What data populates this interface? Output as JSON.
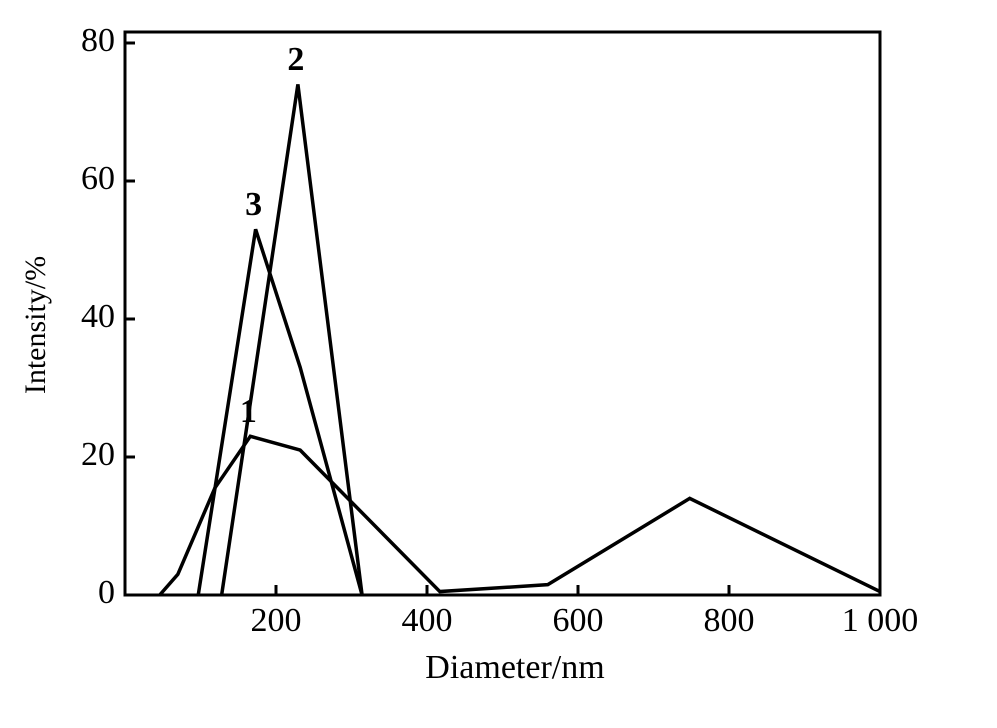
{
  "chart_data": {
    "type": "line",
    "x_label": "Diameter/nm",
    "y_label": "Intensity/%",
    "xlim": [
      0,
      1000
    ],
    "ylim": [
      0,
      80
    ],
    "xticks": [
      200,
      400,
      600,
      800,
      {
        "value": 1000,
        "label": "1 000"
      }
    ],
    "yticks": [
      0,
      20,
      40,
      60,
      80
    ],
    "series": [
      {
        "name": "1",
        "color": "#000000",
        "x": [
          46,
          70,
          119,
          166,
          232,
          417,
          560,
          748,
          1000
        ],
        "values": [
          0,
          3,
          15.5,
          23,
          21,
          0.5,
          1.5,
          14,
          0.5
        ]
      },
      {
        "name": "2",
        "color": "#000000",
        "x": [
          128,
          229,
          314
        ],
        "values": [
          0,
          74,
          0
        ]
      },
      {
        "name": "3",
        "color": "#000000",
        "x": [
          97,
          173,
          232,
          314
        ],
        "values": [
          0,
          53,
          33,
          0
        ]
      }
    ]
  }
}
